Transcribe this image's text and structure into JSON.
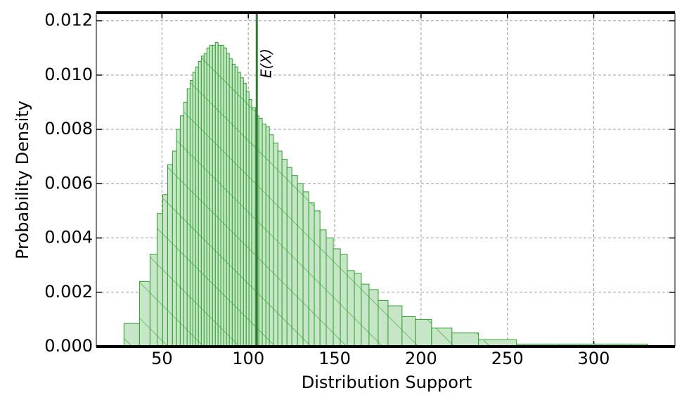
{
  "chart_data": {
    "type": "histogram",
    "xlabel": "Distribution Support",
    "ylabel": "Probability Density",
    "bins": [
      28.0,
      37.0,
      43.1,
      47.2,
      50.4,
      53.3,
      56.1,
      58.5,
      60.6,
      62.6,
      64.6,
      66.3,
      67.9,
      69.5,
      71.1,
      72.8,
      74.4,
      76.0,
      77.6,
      79.3,
      80.9,
      82.5,
      84.1,
      85.8,
      87.4,
      89.0,
      90.7,
      92.3,
      93.9,
      95.5,
      97.2,
      98.8,
      100.4,
      102.0,
      104.1,
      106.1,
      108.1,
      110.2,
      112.2,
      114.6,
      117.1,
      119.5,
      122.4,
      125.2,
      128.5,
      131.7,
      135.0,
      138.2,
      141.5,
      145.1,
      149.2,
      153.3,
      157.3,
      161.4,
      165.4,
      169.9,
      175.2,
      180.9,
      189.0,
      196.7,
      206.1,
      217.9,
      233.3,
      255.3,
      331.3
    ],
    "values": [
      0.00085,
      0.0024,
      0.0034,
      0.0049,
      0.0056,
      0.0067,
      0.0072,
      0.008,
      0.0085,
      0.009,
      0.0095,
      0.0098,
      0.0101,
      0.0103,
      0.0105,
      0.0107,
      0.0108,
      0.011,
      0.0111,
      0.0111,
      0.0112,
      0.0111,
      0.0111,
      0.011,
      0.0108,
      0.0106,
      0.0104,
      0.0103,
      0.0101,
      0.0099,
      0.0097,
      0.0094,
      0.0091,
      0.0088,
      0.0085,
      0.0084,
      0.0082,
      0.0081,
      0.0078,
      0.0075,
      0.0072,
      0.0069,
      0.0066,
      0.0063,
      0.006,
      0.0057,
      0.0053,
      0.005,
      0.0043,
      0.004,
      0.0036,
      0.0034,
      0.0028,
      0.0027,
      0.0023,
      0.0021,
      0.0017,
      0.0015,
      0.0011,
      0.001,
      0.00068,
      0.0005,
      0.00025,
      9e-05
    ],
    "color": "#2ca02c",
    "fill_color": "#c7e6c7",
    "mean": 104.9,
    "mean_label": "E(X)",
    "mean_color": "#2e7d32",
    "xlim": [
      12,
      347
    ],
    "ylim": [
      0,
      0.0123
    ],
    "xticks": [
      50,
      100,
      150,
      200,
      250,
      300
    ],
    "yticks": [
      {
        "value": 0,
        "label": "0.000"
      },
      {
        "value": 0.002,
        "label": "0.002"
      },
      {
        "value": 0.004,
        "label": "0.004"
      },
      {
        "value": 0.006,
        "label": "0.006"
      },
      {
        "value": 0.008,
        "label": "0.008"
      },
      {
        "value": 0.01,
        "label": "0.010"
      },
      {
        "value": 0.012,
        "label": "0.012"
      }
    ],
    "grid": true
  }
}
